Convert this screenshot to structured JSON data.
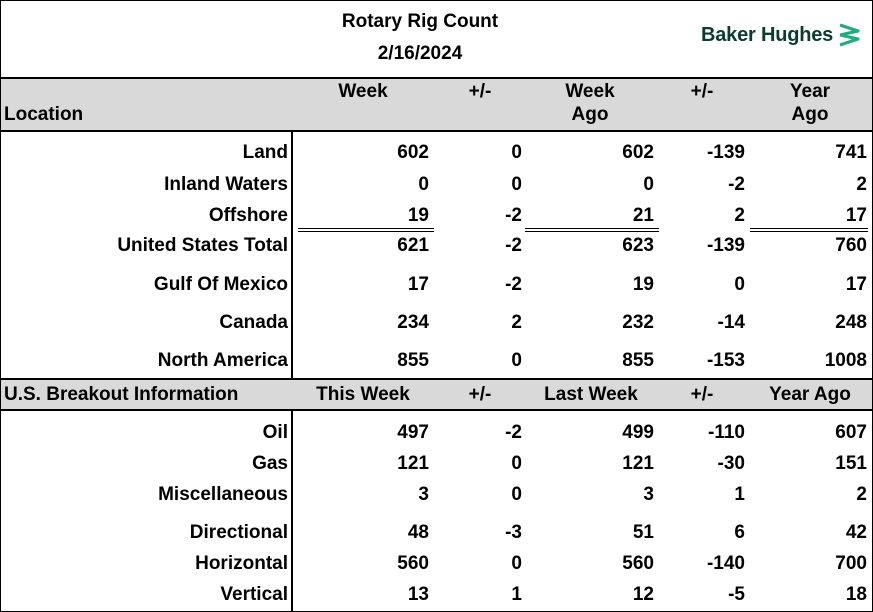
{
  "header": {
    "title": "Rotary Rig Count",
    "date": "2/16/2024",
    "logo_text": "Baker Hughes",
    "logo_color": "#0b3d2e",
    "logo_accent": "#1fae7a"
  },
  "section1": {
    "location_label": "Location",
    "col_week": "Week",
    "col_plusminus1": "+/-",
    "col_week_ago_1": "Week",
    "col_week_ago_2": "Ago",
    "col_plusminus2": "+/-",
    "col_year_ago_1": "Year",
    "col_year_ago_2": "Ago",
    "rows": [
      {
        "label": "Land",
        "week": "602",
        "pm1": "0",
        "week_ago": "602",
        "pm2": "-139",
        "year_ago": "741"
      },
      {
        "label": "Inland Waters",
        "week": "0",
        "pm1": "0",
        "week_ago": "0",
        "pm2": "-2",
        "year_ago": "2"
      },
      {
        "label": "Offshore",
        "week": "19",
        "pm1": "-2",
        "week_ago": "21",
        "pm2": "2",
        "year_ago": "17"
      },
      {
        "label": "United States Total",
        "week": "621",
        "pm1": "-2",
        "week_ago": "623",
        "pm2": "-139",
        "year_ago": "760"
      },
      {
        "label": "Gulf Of Mexico",
        "week": "17",
        "pm1": "-2",
        "week_ago": "19",
        "pm2": "0",
        "year_ago": "17"
      },
      {
        "label": "Canada",
        "week": "234",
        "pm1": "2",
        "week_ago": "232",
        "pm2": "-14",
        "year_ago": "248"
      },
      {
        "label": "North America",
        "week": "855",
        "pm1": "0",
        "week_ago": "855",
        "pm2": "-153",
        "year_ago": "1008"
      }
    ]
  },
  "section2": {
    "label": "U.S. Breakout Information",
    "col_this_week": "This Week",
    "col_plusminus1": "+/-",
    "col_last_week": "Last Week",
    "col_plusminus2": "+/-",
    "col_year_ago": "Year Ago",
    "rows": [
      {
        "label": "Oil",
        "this_week": "497",
        "pm1": "-2",
        "last_week": "499",
        "pm2": "-110",
        "year_ago": "607"
      },
      {
        "label": "Gas",
        "this_week": "121",
        "pm1": "0",
        "last_week": "121",
        "pm2": "-30",
        "year_ago": "151"
      },
      {
        "label": "Miscellaneous",
        "this_week": "3",
        "pm1": "0",
        "last_week": "3",
        "pm2": "1",
        "year_ago": "2"
      },
      {
        "label": "Directional",
        "this_week": "48",
        "pm1": "-3",
        "last_week": "51",
        "pm2": "6",
        "year_ago": "42"
      },
      {
        "label": "Horizontal",
        "this_week": "560",
        "pm1": "0",
        "last_week": "560",
        "pm2": "-140",
        "year_ago": "700"
      },
      {
        "label": "Vertical",
        "this_week": "13",
        "pm1": "1",
        "last_week": "12",
        "pm2": "-5",
        "year_ago": "18"
      }
    ]
  }
}
